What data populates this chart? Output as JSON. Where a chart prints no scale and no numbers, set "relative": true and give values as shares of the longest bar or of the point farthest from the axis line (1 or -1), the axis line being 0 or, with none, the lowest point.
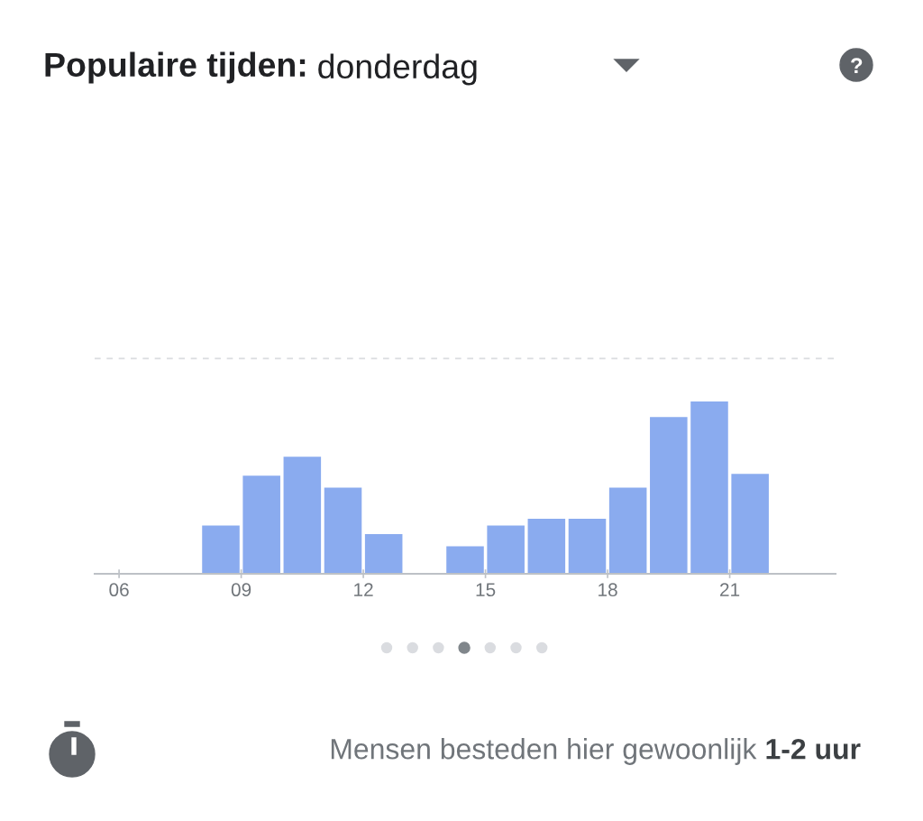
{
  "chart_data": {
    "type": "bar",
    "title": "Populaire tijden:",
    "subtitle": "donderdag",
    "relative": true,
    "x": [
      8.5,
      9.5,
      10.5,
      11.5,
      12.5,
      14.5,
      15.5,
      16.5,
      17.5,
      18.5,
      19.5,
      20.5,
      21.5
    ],
    "values": [
      0.28,
      0.57,
      0.68,
      0.5,
      0.23,
      0.16,
      0.28,
      0.32,
      0.32,
      0.5,
      0.91,
      1,
      0.58
    ],
    "color": "#8aabef",
    "xlim": [
      5.4,
      23.6
    ],
    "xticks": [
      {
        "value": 6,
        "label": "06"
      },
      {
        "value": 9,
        "label": "09"
      },
      {
        "value": 12,
        "label": "12"
      },
      {
        "value": 15,
        "label": "15"
      },
      {
        "value": 18,
        "label": "18"
      },
      {
        "value": 21,
        "label": "21"
      }
    ],
    "ref_lines": [
      {
        "axis": "y",
        "value": 1.25,
        "color": "#dadce0",
        "line_style": "dashed"
      }
    ],
    "annotations": [
      "Mensen besteden hier gewoonlijk",
      "1-2 uur"
    ],
    "grid": false,
    "legend": false
  }
}
